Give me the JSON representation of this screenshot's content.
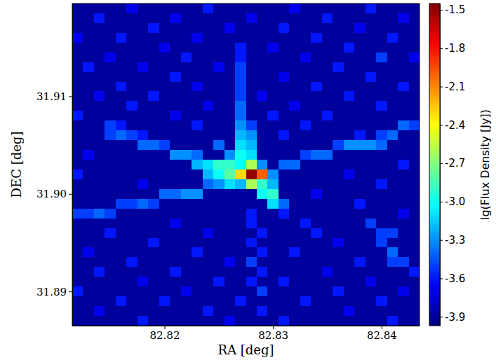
{
  "chart_data": {
    "type": "heatmap",
    "x_label": "RA [deg]",
    "y_label": "DEC [deg]",
    "z_label": "lg(Flux Density [Jy])",
    "xlim": [
      82.8115,
      82.8435
    ],
    "ylim": [
      31.8865,
      31.9195
    ],
    "xticks": [
      82.82,
      82.83,
      82.84
    ],
    "yticks": [
      31.89,
      {
        "value": 31.9,
        "label": "31.90"
      },
      31.91
    ],
    "zlim": [
      -3.97,
      -1.45
    ],
    "zticks": [
      -1.5,
      -1.8,
      -2.1,
      -2.4,
      -2.7,
      {
        "value": -3,
        "label": "-3.0"
      },
      -3.3,
      -3.6,
      -3.9
    ],
    "x": [
      82.812,
      82.813,
      82.814,
      82.815,
      82.816,
      82.817,
      82.818,
      82.819,
      82.82,
      82.821,
      82.822,
      82.823,
      82.824,
      82.825,
      82.826,
      82.827,
      82.828,
      82.829,
      82.83,
      82.831,
      82.832,
      82.833,
      82.834,
      82.835,
      82.836,
      82.837,
      82.838,
      82.839,
      82.84,
      82.841,
      82.842,
      82.843
    ],
    "y": [
      31.919,
      31.918,
      31.917,
      31.916,
      31.915,
      31.914,
      31.913,
      31.912,
      31.911,
      31.91,
      31.909,
      31.908,
      31.907,
      31.906,
      31.905,
      31.904,
      31.903,
      31.902,
      31.901,
      31.9,
      31.899,
      31.898,
      31.897,
      31.896,
      31.895,
      31.894,
      31.893,
      31.892,
      31.891,
      31.89,
      31.889,
      31.888,
      31.887
    ],
    "z": [
      [
        -3.9,
        -3.9,
        -3.9,
        -3.9,
        -3.9,
        -3.7,
        -3.9,
        -3.9,
        -3.9,
        -3.9,
        -3.9,
        -3.9,
        -3.6,
        -3.9,
        -3.9,
        -3.9,
        -3.9,
        -3.9,
        -3.9,
        -3.9,
        -3.7,
        -3.9,
        -3.9,
        -3.9,
        -3.9,
        -3.9,
        -3.9,
        -3.6,
        -3.9,
        -3.9,
        -3.9,
        -3.9
      ],
      [
        -3.9,
        -3.9,
        -3.6,
        -3.9,
        -3.9,
        -3.9,
        -3.9,
        -3.9,
        -3.9,
        -3.7,
        -3.9,
        -3.9,
        -3.9,
        -3.9,
        -3.9,
        -3.9,
        -3.7,
        -3.9,
        -3.9,
        -3.9,
        -3.9,
        -3.9,
        -3.9,
        -3.6,
        -3.9,
        -3.9,
        -3.9,
        -3.9,
        -3.9,
        -3.9,
        -3.7,
        -3.9
      ],
      [
        -3.9,
        -3.9,
        -3.9,
        -3.9,
        -3.9,
        -3.9,
        -3.9,
        -3.6,
        -3.9,
        -3.9,
        -3.9,
        -3.9,
        -3.9,
        -3.9,
        -3.7,
        -3.9,
        -3.9,
        -3.9,
        -3.9,
        -3.6,
        -3.9,
        -3.9,
        -3.9,
        -3.9,
        -3.9,
        -3.9,
        -3.7,
        -3.9,
        -3.9,
        -3.9,
        -3.9,
        -3.9
      ],
      [
        -3.7,
        -3.9,
        -3.9,
        -3.9,
        -3.6,
        -3.9,
        -3.9,
        -3.9,
        -3.9,
        -3.9,
        -3.9,
        -3.7,
        -3.9,
        -3.9,
        -3.9,
        -3.9,
        -3.9,
        -3.9,
        -3.9,
        -3.9,
        -3.9,
        -3.9,
        -3.6,
        -3.9,
        -3.9,
        -3.9,
        -3.9,
        -3.9,
        -3.9,
        -3.6,
        -3.9,
        -3.9
      ],
      [
        -3.9,
        -3.9,
        -3.9,
        -3.9,
        -3.9,
        -3.9,
        -3.9,
        -3.9,
        -3.7,
        -3.9,
        -3.9,
        -3.9,
        -3.9,
        -3.9,
        -3.9,
        -3.6,
        -3.9,
        -3.9,
        -3.7,
        -3.9,
        -3.9,
        -3.9,
        -3.9,
        -3.9,
        -3.9,
        -3.6,
        -3.9,
        -3.9,
        -3.9,
        -3.9,
        -3.9,
        -3.9
      ],
      [
        -3.9,
        -3.9,
        -3.9,
        -3.7,
        -3.9,
        -3.9,
        -3.9,
        -3.9,
        -3.9,
        -3.9,
        -3.6,
        -3.9,
        -3.9,
        -3.9,
        -3.9,
        -3.6,
        -3.9,
        -3.9,
        -3.9,
        -3.9,
        -3.9,
        -3.7,
        -3.9,
        -3.9,
        -3.9,
        -3.9,
        -3.9,
        -3.9,
        -3.5,
        -3.9,
        -3.9,
        -3.7
      ],
      [
        -3.9,
        -3.6,
        -3.9,
        -3.9,
        -3.9,
        -3.9,
        -3.7,
        -3.9,
        -3.9,
        -3.9,
        -3.9,
        -3.9,
        -3.9,
        -3.7,
        -3.9,
        -3.5,
        -3.9,
        -3.9,
        -3.9,
        -3.9,
        -3.9,
        -3.9,
        -3.9,
        -3.9,
        -3.6,
        -3.9,
        -3.9,
        -3.9,
        -3.9,
        -3.9,
        -3.9,
        -3.9
      ],
      [
        -3.9,
        -3.9,
        -3.9,
        -3.9,
        -3.9,
        -3.9,
        -3.9,
        -3.9,
        -3.9,
        -3.6,
        -3.9,
        -3.9,
        -3.9,
        -3.9,
        -3.9,
        -3.5,
        -3.9,
        -3.9,
        -3.9,
        -3.7,
        -3.9,
        -3.9,
        -3.9,
        -3.9,
        -3.9,
        -3.9,
        -3.9,
        -3.6,
        -3.9,
        -3.9,
        -3.9,
        -3.9
      ],
      [
        -3.9,
        -3.9,
        -3.9,
        -3.9,
        -3.6,
        -3.9,
        -3.9,
        -3.9,
        -3.9,
        -3.9,
        -3.9,
        -3.7,
        -3.9,
        -3.9,
        -3.9,
        -3.5,
        -3.9,
        -3.9,
        -3.9,
        -3.9,
        -3.9,
        -3.9,
        -3.6,
        -3.9,
        -3.9,
        -3.9,
        -3.9,
        -3.9,
        -3.9,
        -3.9,
        -3.6,
        -3.9
      ],
      [
        -3.9,
        -3.9,
        -3.7,
        -3.9,
        -3.9,
        -3.9,
        -3.9,
        -3.6,
        -3.9,
        -3.9,
        -3.9,
        -3.9,
        -3.9,
        -3.9,
        -3.9,
        -3.5,
        -3.9,
        -3.7,
        -3.9,
        -3.9,
        -3.9,
        -3.9,
        -3.9,
        -3.9,
        -3.9,
        -3.6,
        -3.9,
        -3.9,
        -3.9,
        -3.9,
        -3.9,
        -3.9
      ],
      [
        -3.9,
        -3.9,
        -3.9,
        -3.9,
        -3.9,
        -3.6,
        -3.9,
        -3.9,
        -3.9,
        -3.9,
        -3.9,
        -3.9,
        -3.7,
        -3.9,
        -3.9,
        -3.4,
        -3.9,
        -3.9,
        -3.9,
        -3.9,
        -3.7,
        -3.9,
        -3.9,
        -3.9,
        -3.9,
        -3.9,
        -3.9,
        -3.9,
        -3.6,
        -3.9,
        -3.9,
        -3.9
      ],
      [
        -3.6,
        -3.9,
        -3.9,
        -3.9,
        -3.9,
        -3.9,
        -3.9,
        -3.9,
        -3.9,
        -3.7,
        -3.9,
        -3.9,
        -3.9,
        -3.9,
        -3.9,
        -3.4,
        -3.9,
        -3.9,
        -3.6,
        -3.9,
        -3.9,
        -3.9,
        -3.9,
        -3.6,
        -3.9,
        -3.9,
        -3.9,
        -3.9,
        -3.9,
        -3.9,
        -3.9,
        -3.9
      ],
      [
        -3.9,
        -3.9,
        -3.9,
        -3.5,
        -3.6,
        -3.9,
        -3.9,
        -3.9,
        -3.9,
        -3.9,
        -3.9,
        -3.6,
        -3.9,
        -3.9,
        -3.9,
        -3.3,
        -3.5,
        -3.9,
        -3.9,
        -3.9,
        -3.9,
        -3.6,
        -3.9,
        -3.9,
        -3.9,
        -3.9,
        -3.9,
        -3.9,
        -3.9,
        -3.9,
        -3.4,
        -3.5
      ],
      [
        -3.9,
        -3.9,
        -3.9,
        -3.5,
        -3.4,
        -3.5,
        -3.6,
        -3.9,
        -3.9,
        -3.9,
        -3.9,
        -3.9,
        -3.9,
        -3.9,
        -3.9,
        -3.2,
        -3.3,
        -3.9,
        -3.9,
        -3.6,
        -3.9,
        -3.9,
        -3.9,
        -3.9,
        -3.9,
        -3.9,
        -3.6,
        -3.9,
        -3.5,
        -3.4,
        -3.9,
        -3.9
      ],
      [
        -3.9,
        -3.9,
        -3.9,
        -3.9,
        -3.9,
        -3.9,
        -3.4,
        -3.4,
        -3.5,
        -3.9,
        -3.9,
        -3.9,
        -3.9,
        -3.4,
        -3.9,
        -3.1,
        -3.2,
        -3.9,
        -3.9,
        -3.9,
        -3.9,
        -3.9,
        -3.9,
        -3.9,
        -3.5,
        -3.3,
        -3.3,
        -3.3,
        -3.4,
        -3.9,
        -3.9,
        -3.9
      ],
      [
        -3.9,
        -3.7,
        -3.9,
        -3.9,
        -3.9,
        -3.9,
        -3.9,
        -3.9,
        -3.9,
        -3.3,
        -3.3,
        -3.4,
        -3.9,
        -3.9,
        -3.3,
        -3.0,
        -3.1,
        -3.9,
        -3.9,
        -3.9,
        -3.9,
        -3.5,
        -3.4,
        -3.4,
        -3.9,
        -3.9,
        -3.9,
        -3.9,
        -3.9,
        -3.9,
        -3.9,
        -3.9
      ],
      [
        -3.9,
        -3.9,
        -3.9,
        -3.9,
        -3.9,
        -3.9,
        -3.9,
        -3.9,
        -3.9,
        -3.9,
        -3.9,
        -3.2,
        -3.1,
        -2.9,
        -2.9,
        -3.0,
        -2.6,
        -3.3,
        -3.9,
        -3.4,
        -3.4,
        -3.9,
        -3.9,
        -3.9,
        -3.9,
        -3.9,
        -3.9,
        -3.9,
        -3.9,
        -3.9,
        -3.6,
        -3.9
      ],
      [
        -3.6,
        -3.9,
        -3.9,
        -3.9,
        -3.9,
        -3.9,
        -3.9,
        -3.9,
        -3.9,
        -3.9,
        -3.9,
        -3.9,
        -3.2,
        -3.0,
        -2.8,
        -2.3,
        -1.5,
        -2.0,
        -3.3,
        -3.9,
        -3.9,
        -3.9,
        -3.9,
        -3.9,
        -3.9,
        -3.7,
        -3.9,
        -3.9,
        -3.9,
        -3.9,
        -3.9,
        -3.9
      ],
      [
        -3.9,
        -3.9,
        -3.9,
        -3.9,
        -3.9,
        -3.9,
        -3.7,
        -3.9,
        -3.9,
        -3.9,
        -3.9,
        -3.9,
        -3.4,
        -3.3,
        -3.1,
        -3.2,
        -2.6,
        -2.9,
        -3.2,
        -3.9,
        -3.9,
        -3.9,
        -3.9,
        -3.9,
        -3.9,
        -3.9,
        -3.9,
        -3.9,
        -3.6,
        -3.9,
        -3.9,
        -3.9
      ],
      [
        -3.9,
        -3.9,
        -3.9,
        -3.9,
        -3.9,
        -3.9,
        -3.9,
        -3.9,
        -3.4,
        -3.4,
        -3.3,
        -3.3,
        -3.9,
        -3.9,
        -3.9,
        -3.9,
        -3.9,
        -3.0,
        -2.9,
        -3.9,
        -3.9,
        -3.9,
        -3.7,
        -3.9,
        -3.9,
        -3.9,
        -3.9,
        -3.9,
        -3.9,
        -3.9,
        -3.9,
        -3.9
      ],
      [
        -3.9,
        -3.9,
        -3.9,
        -3.9,
        -3.5,
        -3.5,
        -3.4,
        -3.5,
        -3.9,
        -3.9,
        -3.9,
        -3.9,
        -3.9,
        -3.9,
        -3.9,
        -3.9,
        -3.9,
        -3.9,
        -3.1,
        -3.4,
        -3.9,
        -3.9,
        -3.9,
        -3.9,
        -3.9,
        -3.9,
        -3.6,
        -3.9,
        -3.9,
        -3.9,
        -3.9,
        -3.9
      ],
      [
        -3.5,
        -3.5,
        -3.4,
        -3.5,
        -3.9,
        -3.9,
        -3.9,
        -3.9,
        -3.9,
        -3.9,
        -3.9,
        -3.9,
        -3.9,
        -3.9,
        -3.9,
        -3.9,
        -3.6,
        -3.9,
        -3.9,
        -3.6,
        -3.9,
        -3.9,
        -3.9,
        -3.9,
        -3.9,
        -3.9,
        -3.9,
        -3.9,
        -3.9,
        -3.9,
        -3.7,
        -3.9
      ],
      [
        -3.9,
        -3.9,
        -3.9,
        -3.9,
        -3.9,
        -3.9,
        -3.9,
        -3.9,
        -3.9,
        -3.7,
        -3.9,
        -3.9,
        -3.9,
        -3.9,
        -3.9,
        -3.9,
        -3.6,
        -3.9,
        -3.9,
        -3.9,
        -3.9,
        -3.6,
        -3.9,
        -3.9,
        -3.9,
        -3.9,
        -3.9,
        -3.5,
        -3.9,
        -3.9,
        -3.9,
        -3.9
      ],
      [
        -3.9,
        -3.9,
        -3.9,
        -3.6,
        -3.9,
        -3.9,
        -3.9,
        -3.9,
        -3.9,
        -3.9,
        -3.9,
        -3.9,
        -3.7,
        -3.9,
        -3.9,
        -3.9,
        -3.9,
        -3.6,
        -3.9,
        -3.9,
        -3.9,
        -3.9,
        -3.6,
        -3.9,
        -3.9,
        -3.9,
        -3.9,
        -3.9,
        -3.5,
        -3.5,
        -3.9,
        -3.9
      ],
      [
        -3.9,
        -3.9,
        -3.9,
        -3.9,
        -3.9,
        -3.9,
        -3.9,
        -3.6,
        -3.9,
        -3.9,
        -3.9,
        -3.9,
        -3.9,
        -3.9,
        -3.9,
        -3.9,
        -3.6,
        -3.9,
        -3.9,
        -3.9,
        -3.9,
        -3.9,
        -3.9,
        -3.9,
        -3.7,
        -3.9,
        -3.9,
        -3.9,
        -3.5,
        -3.9,
        -3.9,
        -3.9
      ],
      [
        -3.9,
        -3.7,
        -3.9,
        -3.9,
        -3.9,
        -3.9,
        -3.9,
        -3.9,
        -3.9,
        -3.9,
        -3.9,
        -3.6,
        -3.9,
        -3.9,
        -3.9,
        -3.9,
        -3.9,
        -3.6,
        -3.9,
        -3.9,
        -3.6,
        -3.9,
        -3.9,
        -3.9,
        -3.9,
        -3.9,
        -3.9,
        -3.9,
        -3.9,
        -3.4,
        -3.9,
        -3.9
      ],
      [
        -3.9,
        -3.9,
        -3.9,
        -3.9,
        -3.9,
        -3.6,
        -3.9,
        -3.9,
        -3.9,
        -3.9,
        -3.9,
        -3.9,
        -3.9,
        -3.9,
        -3.7,
        -3.9,
        -3.5,
        -3.9,
        -3.9,
        -3.9,
        -3.9,
        -3.9,
        -3.9,
        -3.9,
        -3.9,
        -3.9,
        -3.6,
        -3.9,
        -3.9,
        -3.5,
        -3.5,
        -3.9
      ],
      [
        -3.9,
        -3.9,
        -3.6,
        -3.9,
        -3.9,
        -3.9,
        -3.9,
        -3.9,
        -3.9,
        -3.6,
        -3.9,
        -3.9,
        -3.9,
        -3.9,
        -3.9,
        -3.9,
        -3.9,
        -3.6,
        -3.9,
        -3.9,
        -3.9,
        -3.9,
        -3.9,
        -3.7,
        -3.9,
        -3.9,
        -3.9,
        -3.9,
        -3.9,
        -3.9,
        -3.9,
        -3.6
      ],
      [
        -3.9,
        -3.9,
        -3.9,
        -3.9,
        -3.9,
        -3.9,
        -3.7,
        -3.9,
        -3.9,
        -3.9,
        -3.9,
        -3.9,
        -3.9,
        -3.6,
        -3.9,
        -3.9,
        -3.6,
        -3.9,
        -3.9,
        -3.6,
        -3.9,
        -3.9,
        -3.9,
        -3.9,
        -3.9,
        -3.9,
        -3.9,
        -3.7,
        -3.9,
        -3.9,
        -3.9,
        -3.9
      ],
      [
        -3.6,
        -3.9,
        -3.9,
        -3.9,
        -3.9,
        -3.9,
        -3.9,
        -3.9,
        -3.9,
        -3.9,
        -3.7,
        -3.9,
        -3.9,
        -3.9,
        -3.9,
        -3.9,
        -3.9,
        -3.5,
        -3.9,
        -3.9,
        -3.9,
        -3.9,
        -3.9,
        -3.9,
        -3.6,
        -3.9,
        -3.9,
        -3.9,
        -3.9,
        -3.9,
        -3.7,
        -3.9
      ],
      [
        -3.9,
        -3.9,
        -3.9,
        -3.9,
        -3.6,
        -3.9,
        -3.9,
        -3.9,
        -3.6,
        -3.9,
        -3.9,
        -3.9,
        -3.9,
        -3.9,
        -3.9,
        -3.6,
        -3.9,
        -3.9,
        -3.9,
        -3.9,
        -3.9,
        -3.6,
        -3.9,
        -3.9,
        -3.9,
        -3.9,
        -3.9,
        -3.9,
        -3.6,
        -3.9,
        -3.9,
        -3.9
      ],
      [
        -3.9,
        -3.9,
        -3.7,
        -3.9,
        -3.9,
        -3.9,
        -3.9,
        -3.9,
        -3.9,
        -3.9,
        -3.9,
        -3.9,
        -3.6,
        -3.9,
        -3.9,
        -3.9,
        -3.9,
        -3.6,
        -3.9,
        -3.9,
        -3.9,
        -3.9,
        -3.9,
        -3.9,
        -3.9,
        -3.7,
        -3.9,
        -3.9,
        -3.9,
        -3.9,
        -3.9,
        -3.9
      ],
      [
        -3.9,
        -3.9,
        -3.9,
        -3.9,
        -3.9,
        -3.9,
        -3.6,
        -3.9,
        -3.9,
        -3.9,
        -3.9,
        -3.9,
        -3.9,
        -3.9,
        -3.7,
        -3.9,
        -3.9,
        -3.9,
        -3.9,
        -3.6,
        -3.9,
        -3.9,
        -3.9,
        -3.9,
        -3.9,
        -3.9,
        -3.9,
        -3.9,
        -3.9,
        -3.6,
        -3.9,
        -3.9
      ]
    ]
  }
}
